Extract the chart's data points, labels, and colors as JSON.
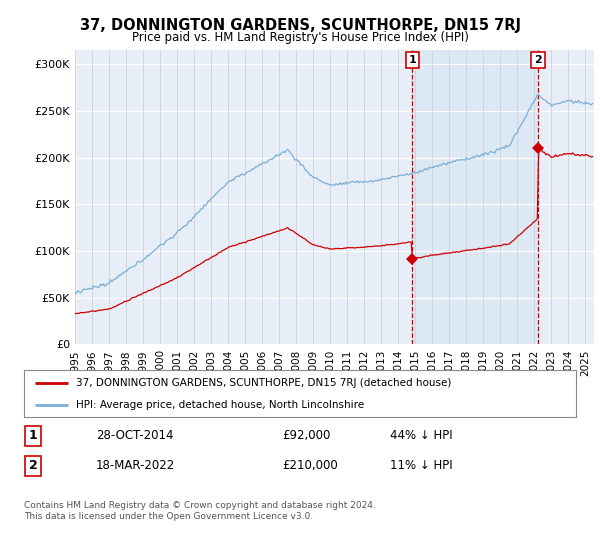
{
  "title": "37, DONNINGTON GARDENS, SCUNTHORPE, DN15 7RJ",
  "subtitle": "Price paid vs. HM Land Registry's House Price Index (HPI)",
  "ylim": [
    0,
    310000
  ],
  "yticks": [
    0,
    50000,
    100000,
    150000,
    200000,
    250000,
    300000
  ],
  "ytick_labels": [
    "£0",
    "£50K",
    "£100K",
    "£150K",
    "£200K",
    "£250K",
    "£300K"
  ],
  "hpi_color": "#7aaed6",
  "price_color": "#cc0000",
  "marker1_date": 2014.83,
  "marker1_price": 92000,
  "marker2_date": 2022.21,
  "marker2_price": 210000,
  "legend_entry1": "37, DONNINGTON GARDENS, SCUNTHORPE, DN15 7RJ (detached house)",
  "legend_entry2": "HPI: Average price, detached house, North Lincolnshire",
  "table_row1_num": "1",
  "table_row1_date": "28-OCT-2014",
  "table_row1_price": "£92,000",
  "table_row1_hpi": "44% ↓ HPI",
  "table_row2_num": "2",
  "table_row2_date": "18-MAR-2022",
  "table_row2_price": "£210,000",
  "table_row2_hpi": "11% ↓ HPI",
  "footer": "Contains HM Land Registry data © Crown copyright and database right 2024.\nThis data is licensed under the Open Government Licence v3.0.",
  "background_color": "#e8eef8",
  "highlight_color": "#dde8f5",
  "xmin": 1995,
  "xmax": 2025.5,
  "xticks": [
    1995,
    1996,
    1997,
    1998,
    1999,
    2000,
    2001,
    2002,
    2003,
    2004,
    2005,
    2006,
    2007,
    2008,
    2009,
    2010,
    2011,
    2012,
    2013,
    2014,
    2015,
    2016,
    2017,
    2018,
    2019,
    2020,
    2021,
    2022,
    2023,
    2024,
    2025
  ]
}
